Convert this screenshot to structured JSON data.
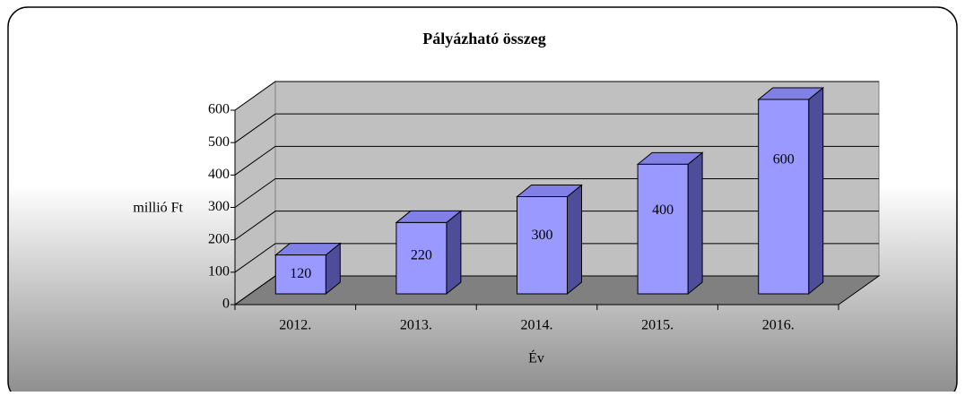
{
  "chart_data": {
    "type": "bar3d",
    "title": "Pályázható összeg",
    "categories": [
      "2012.",
      "2013.",
      "2014.",
      "2015.",
      "2016."
    ],
    "values": [
      120,
      220,
      300,
      400,
      600
    ],
    "color": "#9999ff",
    "ylim": [
      0,
      600
    ],
    "yticks": [
      0,
      100,
      200,
      300,
      400,
      500,
      600
    ],
    "ylabel": "millió Ft",
    "xlabel": "Év",
    "grid": true
  }
}
